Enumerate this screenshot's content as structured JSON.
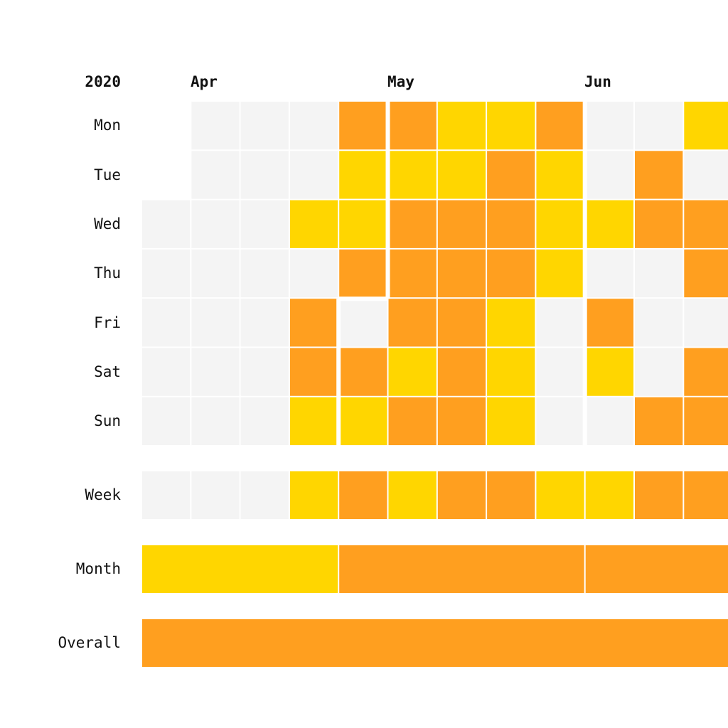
{
  "chart_data": {
    "type": "heatmap",
    "year_label": "2020",
    "month_labels": [
      "Apr",
      "May",
      "Jun"
    ],
    "row_labels": [
      "Mon",
      "Tue",
      "Wed",
      "Thu",
      "Fri",
      "Sat",
      "Sun"
    ],
    "week_label": "Week",
    "month_row_label": "Month",
    "overall_label": "Overall",
    "legend": "none",
    "colors": {
      "empty": "#f4f4f4",
      "yellow": "#ffd600",
      "orange": "#ff9f1f"
    },
    "days": [
      [
        "none",
        "empty",
        "empty",
        "empty",
        "orange",
        "orange",
        "yellow",
        "yellow",
        "orange",
        "empty",
        "empty",
        "yellow"
      ],
      [
        "none",
        "empty",
        "empty",
        "empty",
        "yellow",
        "yellow",
        "yellow",
        "orange",
        "yellow",
        "empty",
        "orange",
        "empty"
      ],
      [
        "empty",
        "empty",
        "empty",
        "yellow",
        "yellow",
        "orange",
        "orange",
        "orange",
        "yellow",
        "yellow",
        "orange",
        "orange"
      ],
      [
        "empty",
        "empty",
        "empty",
        "empty",
        "orange",
        "orange",
        "orange",
        "orange",
        "yellow",
        "empty",
        "empty",
        "orange"
      ],
      [
        "empty",
        "empty",
        "empty",
        "orange",
        "empty",
        "orange",
        "orange",
        "yellow",
        "empty",
        "orange",
        "empty",
        "empty"
      ],
      [
        "empty",
        "empty",
        "empty",
        "orange",
        "orange",
        "yellow",
        "orange",
        "yellow",
        "empty",
        "yellow",
        "empty",
        "orange"
      ],
      [
        "empty",
        "empty",
        "empty",
        "yellow",
        "yellow",
        "orange",
        "orange",
        "yellow",
        "empty",
        "empty",
        "orange",
        "orange"
      ]
    ],
    "weeks": [
      "empty",
      "empty",
      "empty",
      "yellow",
      "orange",
      "yellow",
      "orange",
      "orange",
      "yellow",
      "yellow",
      "orange",
      "orange"
    ],
    "months": [
      "yellow",
      "orange",
      "orange"
    ],
    "overall": "orange"
  }
}
